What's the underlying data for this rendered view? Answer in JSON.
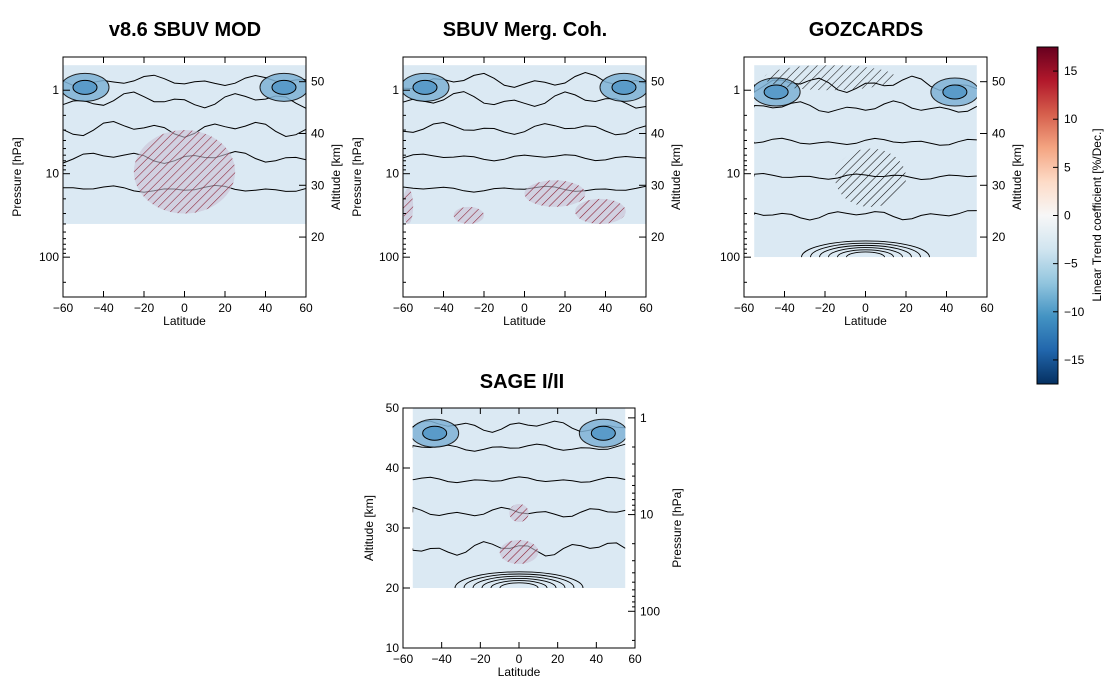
{
  "chart_data": [
    {
      "type": "heatmap",
      "title": "v8.6 SBUV MOD",
      "xlabel": "Latitude",
      "ylabel_left": "Pressure [hPa]",
      "ylabel_right": "Altitude [km]",
      "xlim": [
        -60,
        60
      ],
      "x_ticks": [
        -60,
        -40,
        -20,
        0,
        20,
        40,
        60
      ],
      "pressure_ticks": [
        1,
        10,
        100
      ],
      "altitude_ticks": [
        20,
        30,
        40,
        50
      ],
      "data_pressure_range_hPa": [
        0.5,
        40
      ],
      "grid": false,
      "hatched_regions": [
        {
          "lat": [
            -25,
            25
          ],
          "pressure_hPa": [
            3,
            30
          ],
          "color": "dark-red"
        }
      ]
    },
    {
      "type": "heatmap",
      "title": "SBUV Merg. Coh.",
      "xlabel": "Latitude",
      "ylabel_left": "Pressure [hPa]",
      "ylabel_right": "Altitude [km]",
      "xlim": [
        -60,
        60
      ],
      "x_ticks": [
        -60,
        -40,
        -20,
        0,
        20,
        40,
        60
      ],
      "pressure_ticks": [
        1,
        10,
        100
      ],
      "altitude_ticks": [
        20,
        30,
        40,
        50
      ],
      "data_pressure_range_hPa": [
        0.5,
        40
      ],
      "grid": false,
      "hatched_regions": [
        {
          "lat": [
            -60,
            -55
          ],
          "pressure_hPa": [
            15,
            40
          ],
          "color": "dark-red"
        },
        {
          "lat": [
            -35,
            -20
          ],
          "pressure_hPa": [
            25,
            40
          ],
          "color": "dark-red"
        },
        {
          "lat": [
            0,
            30
          ],
          "pressure_hPa": [
            12,
            25
          ],
          "color": "dark-red"
        },
        {
          "lat": [
            25,
            50
          ],
          "pressure_hPa": [
            20,
            40
          ],
          "color": "dark-red"
        }
      ]
    },
    {
      "type": "heatmap",
      "title": "GOZCARDS",
      "xlabel": "Latitude",
      "ylabel_left": "",
      "ylabel_right": "Altitude [km]",
      "xlim": [
        -60,
        60
      ],
      "x_ticks": [
        -60,
        -40,
        -20,
        0,
        20,
        40,
        60
      ],
      "pressure_ticks": [
        1,
        10,
        100
      ],
      "altitude_ticks": [
        20,
        30,
        40,
        50
      ],
      "data_lat_range": [
        -55,
        55
      ],
      "data_pressure_range_hPa": [
        0.5,
        100
      ],
      "grid": false,
      "hatched_regions": [
        {
          "lat": [
            -50,
            15
          ],
          "pressure_hPa": [
            0.5,
            1
          ],
          "color": "black"
        },
        {
          "lat": [
            -15,
            20
          ],
          "pressure_hPa": [
            5,
            25
          ],
          "color": "black"
        }
      ]
    },
    {
      "type": "heatmap",
      "title": "SAGE I/II",
      "xlabel": "Latitude",
      "ylabel_left": "Altitude [km]",
      "ylabel_right": "Pressure [hPa]",
      "xlim": [
        -60,
        60
      ],
      "ylim": [
        10,
        50
      ],
      "x_ticks": [
        -60,
        -40,
        -20,
        0,
        20,
        40,
        60
      ],
      "altitude_ticks": [
        10,
        20,
        30,
        40,
        50
      ],
      "pressure_ticks": [
        1,
        10,
        100
      ],
      "data_lat_range": [
        -55,
        55
      ],
      "data_altitude_range_km": [
        20,
        50
      ],
      "grid": false,
      "hatched_regions": [
        {
          "lat": [
            -5,
            5
          ],
          "altitude_km": [
            31,
            34
          ],
          "color": "dark-red"
        },
        {
          "lat": [
            -10,
            10
          ],
          "altitude_km": [
            24,
            28
          ],
          "color": "dark-red"
        }
      ]
    }
  ],
  "colorbar": {
    "label": "Linear Trend coefficient [%/Dec.]",
    "range": [
      -17.5,
      17.5
    ],
    "ticks": [
      15,
      10,
      5,
      0,
      -5,
      -10,
      -15
    ],
    "colors": [
      "#67001f",
      "#b2182b",
      "#d6604d",
      "#f4a582",
      "#fddbc7",
      "#f7f7f7",
      "#d1e5f0",
      "#92c5de",
      "#4393c3",
      "#2166ac",
      "#053061"
    ]
  }
}
